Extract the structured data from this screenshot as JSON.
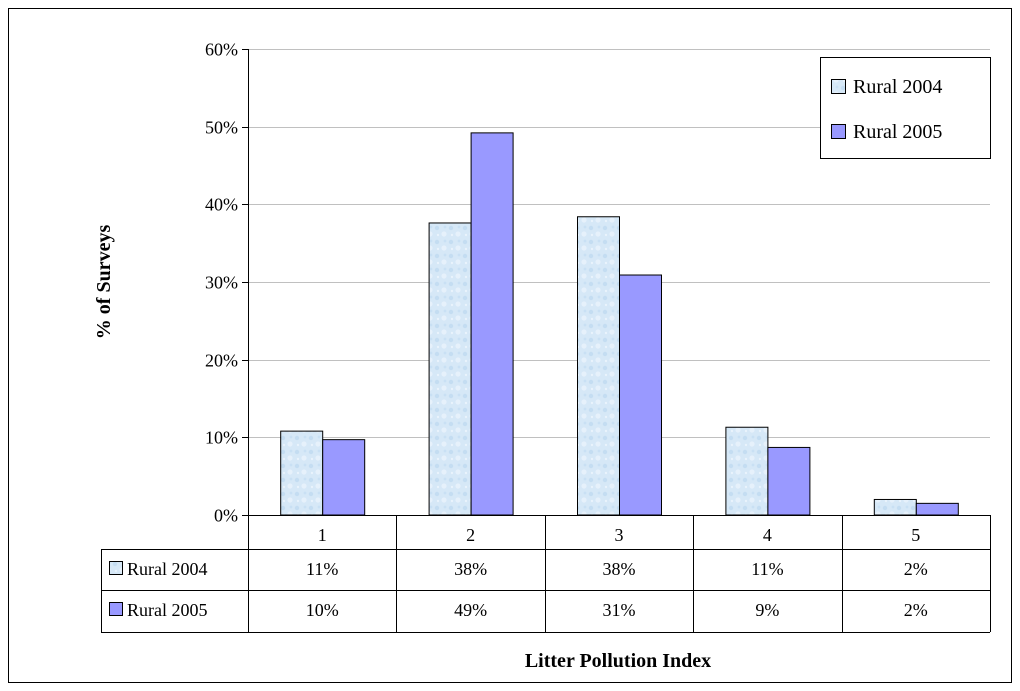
{
  "chart_data": {
    "type": "bar",
    "categories": [
      "1",
      "2",
      "3",
      "4",
      "5"
    ],
    "series": [
      {
        "name": "Rural 2004",
        "values": [
          10.8,
          37.6,
          38.4,
          11.3,
          2.0
        ],
        "labels": [
          "11%",
          "38%",
          "38%",
          "11%",
          "2%"
        ],
        "color": "#d6e8f7",
        "pattern": "light-blue-marble"
      },
      {
        "name": "Rural 2005",
        "values": [
          9.7,
          49.2,
          30.9,
          8.7,
          1.5
        ],
        "labels": [
          "10%",
          "49%",
          "31%",
          "9%",
          "2%"
        ],
        "color": "#9999ff"
      }
    ],
    "ylim": [
      0,
      60
    ],
    "yticks": [
      0,
      10,
      20,
      30,
      40,
      50,
      60
    ],
    "ytick_labels": [
      "0%",
      "10%",
      "20%",
      "30%",
      "40%",
      "50%",
      "60%"
    ],
    "ylabel": "% of Surveys",
    "xlabel": "Litter Pollution Index",
    "grid": true,
    "legend_position": "top-right",
    "data_table": true
  }
}
